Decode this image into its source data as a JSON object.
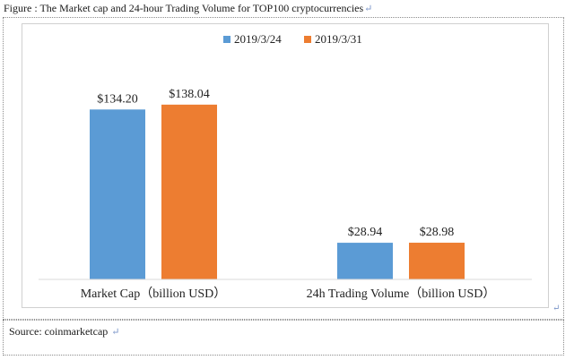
{
  "figure": {
    "caption": "Figure : The Market cap and 24-hour Trading Volume for TOP100 cryptocurrencies",
    "source": "Source: coinmarketcap",
    "paragraph_mark": "↵"
  },
  "chart_data": {
    "type": "bar",
    "title": "",
    "categories": [
      "Market Cap（billion USD）",
      "24h Trading Volume（billion USD）"
    ],
    "series": [
      {
        "name": "2019/3/24",
        "values": [
          134.2,
          28.94
        ],
        "labels": [
          "$134.20",
          "$28.94"
        ]
      },
      {
        "name": "2019/3/31",
        "values": [
          138.04,
          28.98
        ],
        "labels": [
          "$138.04",
          "$28.98"
        ]
      }
    ],
    "colors": [
      "#5b9bd5",
      "#ed7d31"
    ],
    "ylim": [
      0,
      145
    ],
    "grid": false,
    "legend": "top",
    "xlabel": "",
    "ylabel": ""
  }
}
